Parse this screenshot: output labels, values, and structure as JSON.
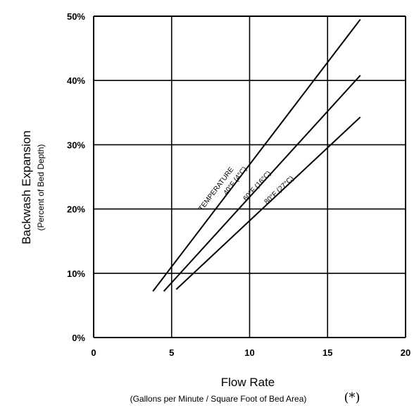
{
  "chart_data": {
    "type": "line",
    "title": "",
    "xlabel": "Flow Rate",
    "xlabel_sub": "(Gallons per Minute / Square Foot of Bed Area)",
    "xlabel_note": "(*)",
    "ylabel": "Backwash Expansion",
    "ylabel_sub": "(Percent of Bed Depth)",
    "xlim": [
      0,
      20
    ],
    "ylim": [
      0,
      50
    ],
    "x_ticks": [
      0,
      5,
      10,
      15,
      20
    ],
    "x_tick_labels": [
      "0",
      "5",
      "10",
      "15",
      "20"
    ],
    "y_ticks": [
      0,
      10,
      20,
      30,
      40,
      50
    ],
    "y_tick_labels": [
      "0%",
      "10%",
      "20%",
      "30%",
      "40%",
      "50%"
    ],
    "grid": true,
    "legend_title": "TEMPERATURE",
    "series": [
      {
        "name": "40°F (4°C)",
        "points": [
          [
            3.8,
            7.2
          ],
          [
            17.1,
            49.5
          ]
        ]
      },
      {
        "name": "60°F (16°C)",
        "points": [
          [
            4.5,
            7.2
          ],
          [
            17.1,
            40.8
          ]
        ]
      },
      {
        "name": "80°F (27°C)",
        "points": [
          [
            5.3,
            7.5
          ],
          [
            17.1,
            34.3
          ]
        ]
      }
    ]
  }
}
